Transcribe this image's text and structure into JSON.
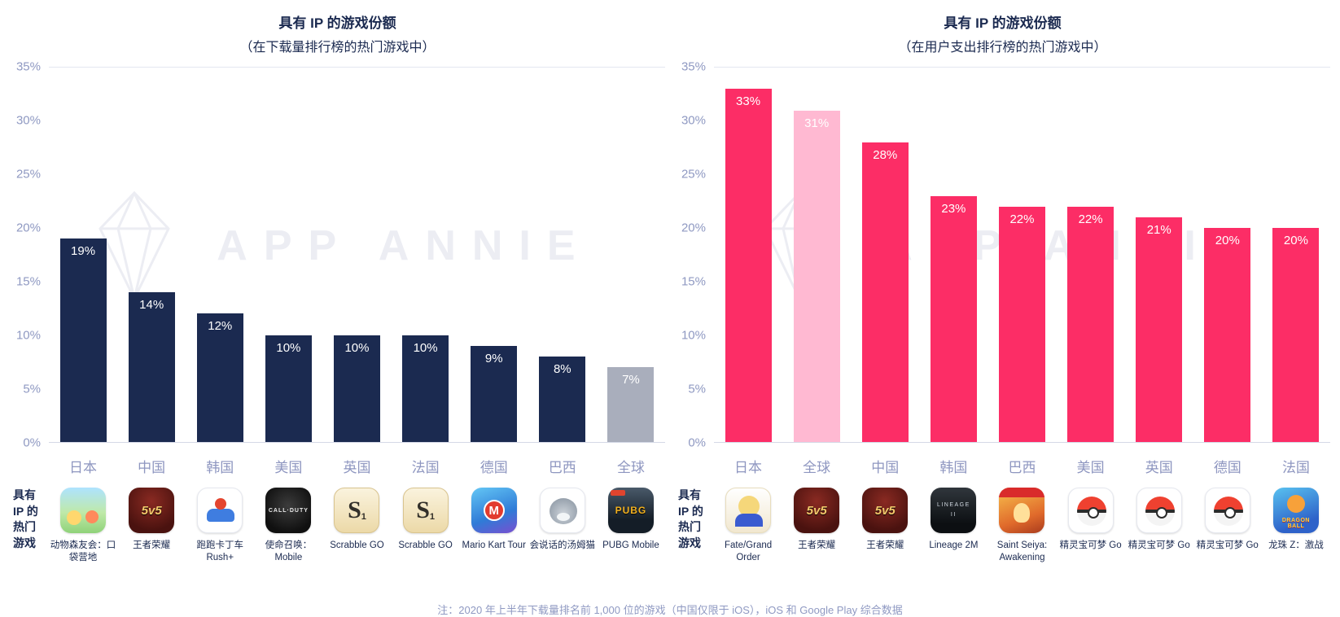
{
  "watermark": {
    "text": "APP ANNIE"
  },
  "footnote": "注：2020 年上半年下载量排名前 1,000 位的游戏（中国仅限于 iOS），iOS 和 Google Play 综合数据",
  "chart_data": [
    {
      "type": "bar",
      "title": "具有 IP 的游戏份额",
      "subtitle": "（在下载量排行榜的热门游戏中）",
      "xlabel": "",
      "ylabel": "",
      "ylim": [
        0,
        35
      ],
      "yticks": [
        "35%",
        "30%",
        "25%",
        "20%",
        "15%",
        "10%",
        "5%",
        "0%"
      ],
      "grid": false,
      "legend": "none",
      "categories": [
        "日本",
        "中国",
        "韩国",
        "美国",
        "英国",
        "法国",
        "德国",
        "巴西",
        "全球"
      ],
      "values": [
        19,
        14,
        12,
        10,
        10,
        10,
        9,
        8,
        7
      ],
      "value_labels": [
        "19%",
        "14%",
        "12%",
        "10%",
        "10%",
        "10%",
        "9%",
        "8%",
        "7%"
      ],
      "bar_colors": [
        "#1b2a50",
        "#1b2a50",
        "#1b2a50",
        "#1b2a50",
        "#1b2a50",
        "#1b2a50",
        "#1b2a50",
        "#1b2a50",
        "#a9aebc"
      ],
      "row_label_lines": [
        "具有",
        "IP 的",
        "热门",
        "游戏"
      ],
      "games": [
        {
          "name": "动物森友会：口袋营地",
          "icon": "animal-crossing-icon",
          "icon_text": ""
        },
        {
          "name": "王者荣耀",
          "icon": "honor-of-kings-icon",
          "icon_text": "5v5"
        },
        {
          "name": "跑跑卡丁车 Rush+",
          "icon": "kartrider-icon",
          "icon_text": ""
        },
        {
          "name": "使命召唤：Mobile",
          "icon": "cod-mobile-icon",
          "icon_text": "CALL·DUTY"
        },
        {
          "name": "Scrabble GO",
          "icon": "scrabble-icon",
          "icon_text": "S",
          "icon_sub": "1"
        },
        {
          "name": "Scrabble GO",
          "icon": "scrabble-icon",
          "icon_text": "S",
          "icon_sub": "1"
        },
        {
          "name": "Mario Kart Tour",
          "icon": "mario-kart-icon",
          "icon_text": "M"
        },
        {
          "name": "会说话的汤姆猫",
          "icon": "talking-tom-icon",
          "icon_text": ""
        },
        {
          "name": "PUBG Mobile",
          "icon": "pubg-icon",
          "icon_text": "PUBG"
        }
      ]
    },
    {
      "type": "bar",
      "title": "具有 IP 的游戏份额",
      "subtitle": "（在用户支出排行榜的热门游戏中）",
      "xlabel": "",
      "ylabel": "",
      "ylim": [
        0,
        35
      ],
      "yticks": [
        "35%",
        "30%",
        "25%",
        "20%",
        "15%",
        "10%",
        "5%",
        "0%"
      ],
      "grid": false,
      "legend": "none",
      "categories": [
        "日本",
        "全球",
        "中国",
        "韩国",
        "巴西",
        "美国",
        "英国",
        "德国",
        "法国"
      ],
      "values": [
        33,
        31,
        28,
        23,
        22,
        22,
        21,
        20,
        20
      ],
      "value_labels": [
        "33%",
        "31%",
        "28%",
        "23%",
        "22%",
        "22%",
        "21%",
        "20%",
        "20%"
      ],
      "bar_colors": [
        "#fc2d66",
        "#ffb9d2",
        "#fc2d66",
        "#fc2d66",
        "#fc2d66",
        "#fc2d66",
        "#fc2d66",
        "#fc2d66",
        "#fc2d66"
      ],
      "row_label_lines": [
        "具有",
        "IP 的",
        "热门",
        "游戏"
      ],
      "games": [
        {
          "name": "Fate/Grand Order",
          "icon": "fgo-icon",
          "icon_text": ""
        },
        {
          "name": "王者荣耀",
          "icon": "honor-of-kings-icon",
          "icon_text": "5v5"
        },
        {
          "name": "王者荣耀",
          "icon": "honor-of-kings-icon",
          "icon_text": "5v5"
        },
        {
          "name": "Lineage 2M",
          "icon": "lineage-icon",
          "icon_text": "LINEAGE\nII"
        },
        {
          "name": "Saint Seiya: Awakening",
          "icon": "saint-seiya-icon",
          "icon_text": ""
        },
        {
          "name": "精灵宝可梦 Go",
          "icon": "pokeball-icon",
          "icon_text": ""
        },
        {
          "name": "精灵宝可梦 Go",
          "icon": "pokeball-icon",
          "icon_text": ""
        },
        {
          "name": "精灵宝可梦 Go",
          "icon": "pokeball-icon",
          "icon_text": ""
        },
        {
          "name": "龙珠 Z：激战",
          "icon": "dbz-icon",
          "icon_text": "DRAGON BALL"
        }
      ]
    }
  ]
}
